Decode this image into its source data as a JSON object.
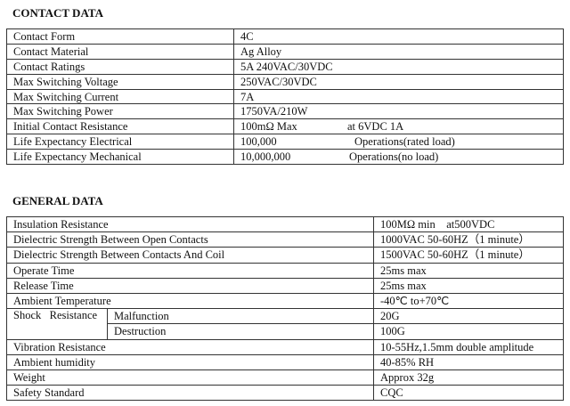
{
  "contact": {
    "title": "CONTACT DATA",
    "rows": [
      {
        "label": "Contact Form",
        "value": "4C"
      },
      {
        "label": "Contact Material",
        "value": "Ag Alloy"
      },
      {
        "label": "Contact Ratings",
        "value": "5A 240VAC/30VDC"
      },
      {
        "label": "Max Switching Voltage",
        "value": "250VAC/30VDC"
      },
      {
        "label": "Max Switching Current",
        "value": "7A"
      },
      {
        "label": "Max Switching Power",
        "value": "1750VA/210W"
      },
      {
        "label": "Initial Contact Resistance",
        "value": "100mΩ Max",
        "note": "at 6VDC 1A"
      },
      {
        "label": "Life Expectancy Electrical",
        "value": "100,000",
        "note": "Operations(rated load)"
      },
      {
        "label": "Life Expectancy Mechanical",
        "value": "10,000,000",
        "note": "Operations(no load)"
      }
    ]
  },
  "general": {
    "title": "GENERAL DATA",
    "rows": [
      {
        "label": "Insulation Resistance",
        "value": "100MΩ min    at500VDC"
      },
      {
        "label": "Dielectric Strength Between Open Contacts",
        "value": "1000VAC 50-60HZ（1 minute）"
      },
      {
        "label": "Dielectric Strength Between Contacts And Coil",
        "value": "1500VAC 50-60HZ（1 minute）"
      },
      {
        "label": "Operate Time",
        "value": "25ms max"
      },
      {
        "label": "Release Time",
        "value": "25ms max"
      },
      {
        "label": "Ambient Temperature",
        "value": "-40℃ to+70℃"
      },
      {
        "label": "Shock   Resistance",
        "sub": "Malfunction",
        "value": "20G"
      },
      {
        "sub": "Destruction",
        "value": "100G"
      },
      {
        "label": "Vibration Resistance",
        "value": "10-55Hz,1.5mm double amplitude"
      },
      {
        "label": "Ambient humidity",
        "value": "40-85% RH"
      },
      {
        "label": "Weight",
        "value": "Approx 32g"
      },
      {
        "label": "Safety Standard",
        "value": "CQC"
      }
    ]
  }
}
